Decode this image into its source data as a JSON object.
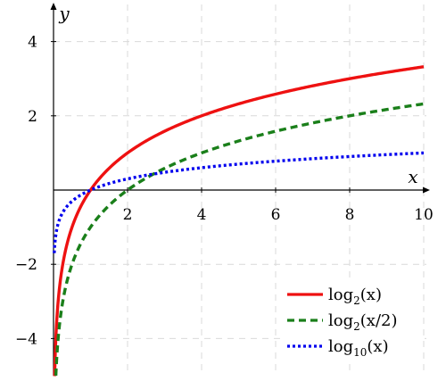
{
  "chart_data": {
    "type": "line",
    "xlabel": "x",
    "ylabel": "y",
    "xlim": [
      0,
      10
    ],
    "ylim": [
      -5,
      5
    ],
    "x_ticks": [
      2,
      4,
      6,
      8,
      10
    ],
    "x_tick_labels": [
      "2",
      "4",
      "6",
      "8",
      "10"
    ],
    "y_ticks": [
      -4,
      -2,
      2,
      4
    ],
    "y_tick_labels": [
      "−4",
      "−2",
      "2",
      "4"
    ],
    "grid": true,
    "legend_position": "bottom-right",
    "series": [
      {
        "name": "log₂(x)",
        "function": "log2(x)",
        "color": "#ee1111",
        "style": "solid",
        "x": [
          0.031,
          0.05,
          0.1,
          0.25,
          0.5,
          1,
          2,
          3,
          4,
          5,
          6,
          7,
          8,
          9,
          10
        ],
        "y": [
          -5.0,
          -4.32,
          -3.32,
          -2.0,
          -1.0,
          0.0,
          1.0,
          1.58,
          2.0,
          2.32,
          2.58,
          2.81,
          3.0,
          3.17,
          3.32
        ]
      },
      {
        "name": "log₂(x/2)",
        "function": "log2(x/2)",
        "color": "#1a7f1a",
        "style": "dashed",
        "x": [
          0.0625,
          0.1,
          0.25,
          0.5,
          1,
          2,
          3,
          4,
          5,
          6,
          7,
          8,
          9,
          10
        ],
        "y": [
          -5.0,
          -4.32,
          -3.0,
          -2.0,
          -1.0,
          0.0,
          0.58,
          1.0,
          1.32,
          1.58,
          1.81,
          2.0,
          2.17,
          2.32
        ]
      },
      {
        "name": "log₁₀(x)",
        "function": "log10(x)",
        "color": "#0000ee",
        "style": "dotted",
        "x": [
          0.02,
          0.05,
          0.1,
          0.25,
          0.5,
          1,
          2,
          3,
          4,
          5,
          6,
          7,
          8,
          9,
          10
        ],
        "y": [
          -1.7,
          -1.3,
          -1.0,
          -0.6,
          -0.3,
          0.0,
          0.3,
          0.48,
          0.6,
          0.7,
          0.78,
          0.85,
          0.9,
          0.95,
          1.0
        ]
      }
    ]
  },
  "legend": {
    "items": [
      {
        "base": "log",
        "sub": "2",
        "arg": "(x)"
      },
      {
        "base": "log",
        "sub": "2",
        "arg": "(x/2)"
      },
      {
        "base": "log",
        "sub": "10",
        "arg": "(x)"
      }
    ]
  }
}
